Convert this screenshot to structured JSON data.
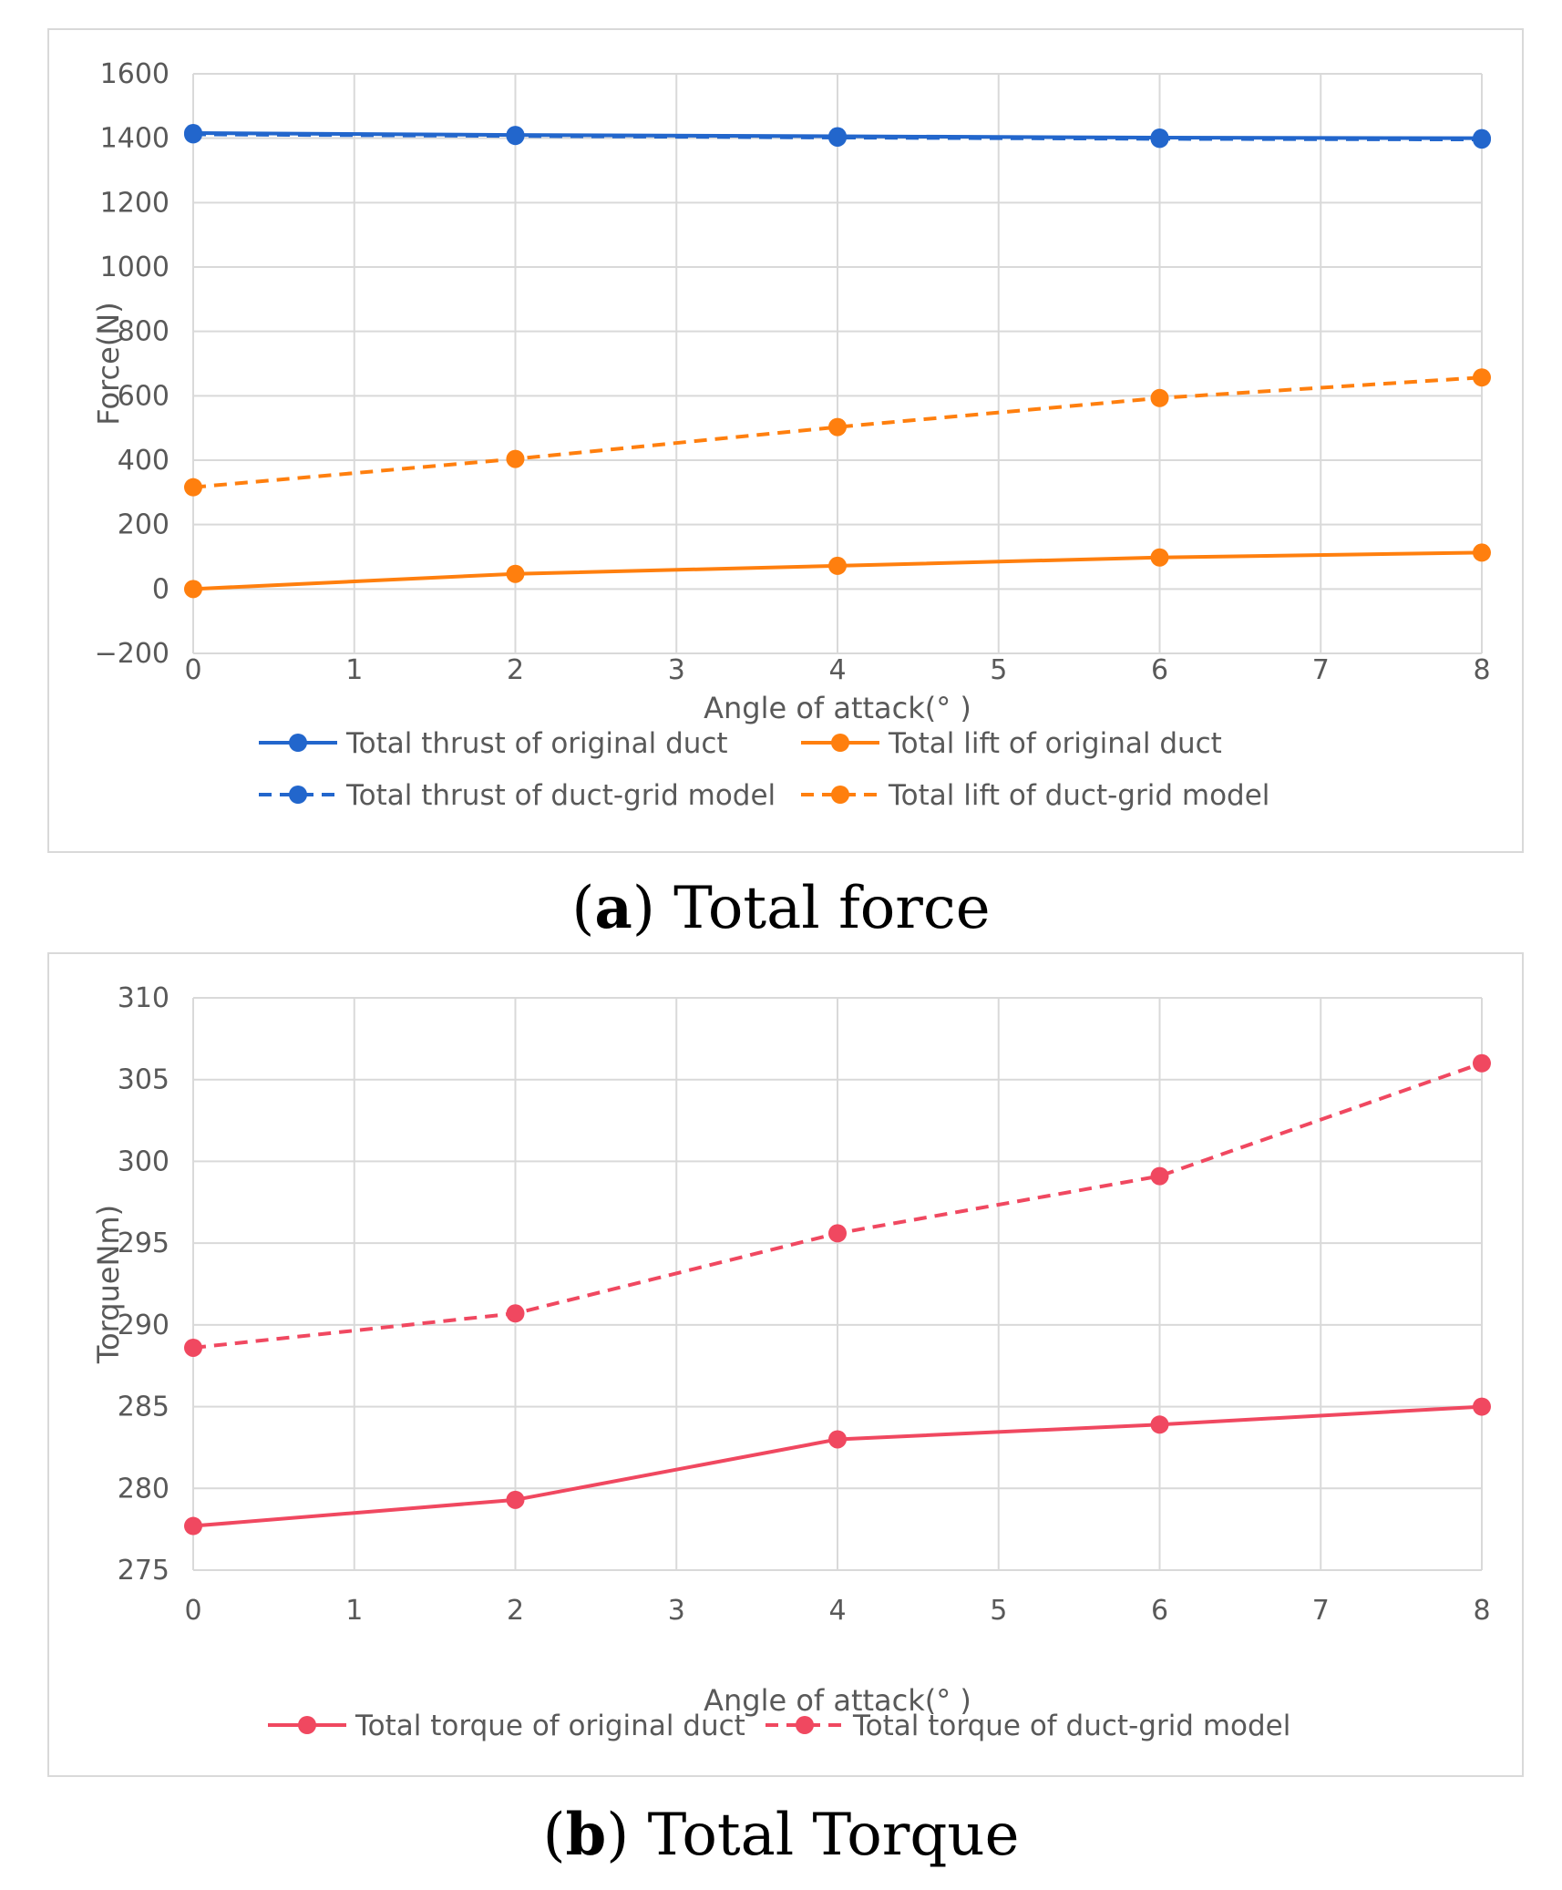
{
  "chart_data": [
    {
      "id": "a",
      "type": "line",
      "caption_letter": "a",
      "caption_text": "Total force",
      "xlabel": "Angle of attack(°  )",
      "ylabel": "Force(N)",
      "xlim": [
        0,
        8
      ],
      "ylim": [
        -200,
        1600
      ],
      "xticks": [
        0,
        1,
        2,
        3,
        4,
        5,
        6,
        7,
        8
      ],
      "yticks": [
        -200,
        0,
        200,
        400,
        600,
        800,
        1000,
        1200,
        1400,
        1600
      ],
      "ytick_labels": [
        "−200",
        "0",
        "200",
        "400",
        "600",
        "800",
        "1000",
        "1200",
        "1400",
        "1600"
      ],
      "grid": true,
      "legend_position": "bottom",
      "x": [
        0,
        2,
        4,
        6,
        8
      ],
      "series": [
        {
          "name": "Total thrust of original duct",
          "color": "#2266cc",
          "dashed": false,
          "values": [
            1416,
            1410,
            1406,
            1402,
            1400
          ]
        },
        {
          "name": "Total lift of original duct",
          "color": "#ff7f0e",
          "dashed": false,
          "values": [
            0,
            47,
            72,
            98,
            113
          ]
        },
        {
          "name": "Total thrust of duct-grid model",
          "color": "#2266cc",
          "dashed": true,
          "values": [
            1412,
            1407,
            1402,
            1398,
            1396
          ]
        },
        {
          "name": "Total lift of duct-grid model",
          "color": "#ff7f0e",
          "dashed": true,
          "values": [
            316,
            404,
            503,
            593,
            657
          ]
        }
      ]
    },
    {
      "id": "b",
      "type": "line",
      "caption_letter": "b",
      "caption_text": "Total Torque",
      "xlabel": "Angle of attack(°  )",
      "ylabel": "TorqueNm)",
      "xlim": [
        0,
        8
      ],
      "ylim": [
        275,
        310
      ],
      "xticks": [
        0,
        1,
        2,
        3,
        4,
        5,
        6,
        7,
        8
      ],
      "yticks": [
        275,
        280,
        285,
        290,
        295,
        300,
        305,
        310
      ],
      "ytick_labels": [
        "275",
        "280",
        "285",
        "290",
        "295",
        "300",
        "305",
        "310"
      ],
      "grid": true,
      "legend_position": "bottom",
      "x": [
        0,
        2,
        4,
        6,
        8
      ],
      "series": [
        {
          "name": "Total torque of original duct",
          "color": "#f04860",
          "dashed": false,
          "values": [
            277.7,
            279.3,
            283.0,
            283.9,
            285.0
          ]
        },
        {
          "name": "Total torque of duct-grid model",
          "color": "#f04860",
          "dashed": true,
          "values": [
            288.6,
            290.7,
            295.6,
            299.1,
            306.0
          ]
        }
      ]
    }
  ]
}
